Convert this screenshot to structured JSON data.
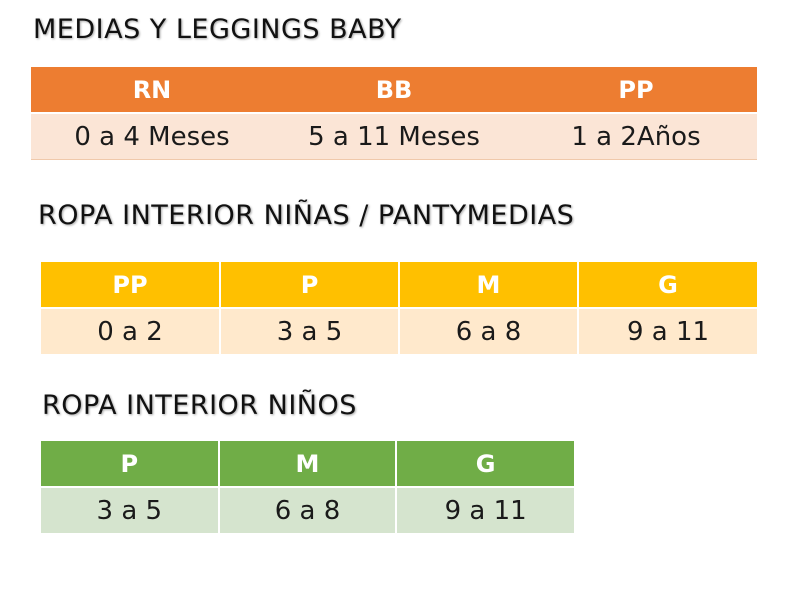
{
  "colors": {
    "orange_header": "#ED7D31",
    "orange_row": "#FBE5D6",
    "yellow_header": "#FFC000",
    "yellow_row": "#FFE9CC",
    "green_header": "#70AD47",
    "green_row": "#D5E4CE"
  },
  "sections": [
    {
      "title": "MEDIAS Y LEGGINGS BABY",
      "headers": [
        "RN",
        "BB",
        "PP"
      ],
      "values": [
        "0 a 4 Meses",
        "5 a 11 Meses",
        "1 a 2Años"
      ]
    },
    {
      "title": "ROPA INTERIOR NIÑAS / PANTYMEDIAS",
      "headers": [
        "PP",
        "P",
        "M",
        "G"
      ],
      "values": [
        "0 a 2",
        "3 a 5",
        "6 a 8",
        "9 a 11"
      ]
    },
    {
      "title": "ROPA INTERIOR NIÑOS",
      "headers": [
        "P",
        "M",
        "G"
      ],
      "values": [
        "3 a 5",
        "6 a 8",
        "9 a 11"
      ]
    }
  ]
}
